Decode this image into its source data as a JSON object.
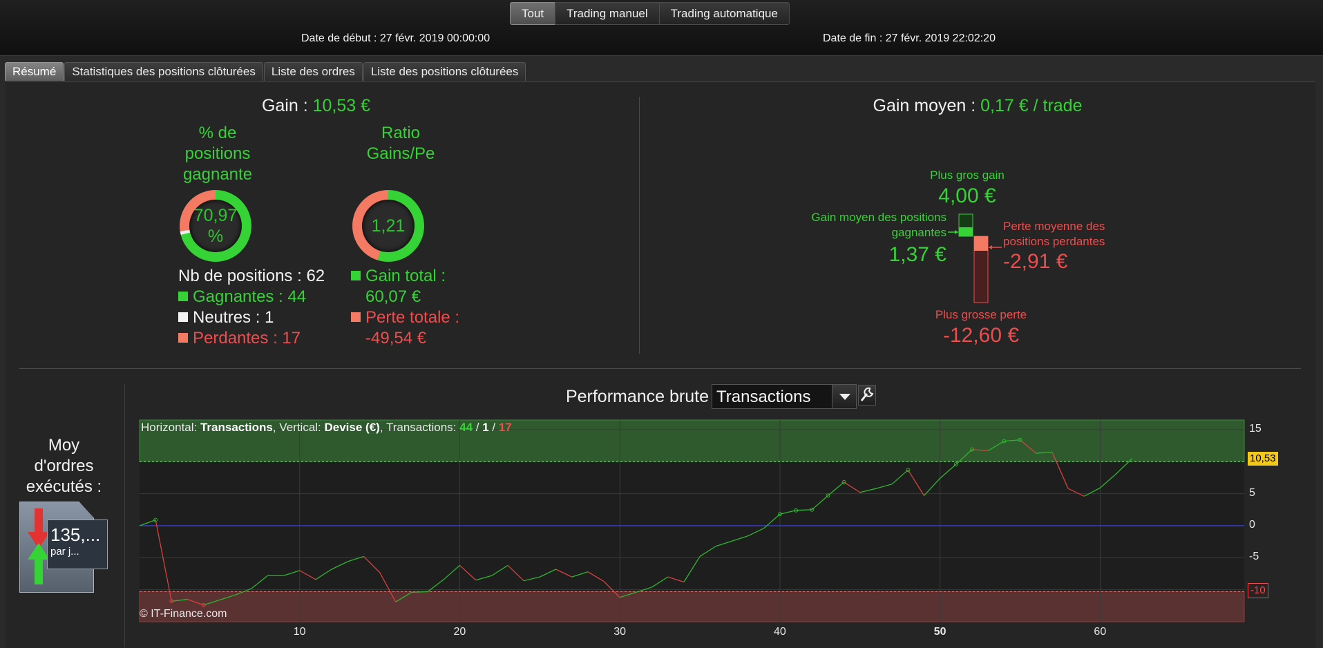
{
  "mode_tabs": [
    "Tout",
    "Trading manuel",
    "Trading automatique"
  ],
  "active_mode": 0,
  "dates": {
    "start": "Date de début : 27 févr. 2019 00:00:00",
    "end": "Date de fin : 27 févr. 2019 22:02:20"
  },
  "subtabs": [
    "Résumé",
    "Statistiques des positions clôturées",
    "Liste des ordres",
    "Liste des positions clôturées"
  ],
  "summary": {
    "gain_label": "Gain :",
    "gain_value": "10,53 €",
    "pct_title": "% de positions gagnante",
    "pct_title_lines": [
      "% de",
      "positions",
      "gagnante"
    ],
    "pct_value_lines": [
      "70,97",
      "%"
    ],
    "pct_fraction": 0.7097,
    "ratio_title_lines": [
      "Ratio",
      "Gains/Pe"
    ],
    "ratio_value": "1,21",
    "nb_positions": "Nb de positions : 62",
    "winners": "Gagnantes : 44",
    "neutrals": "Neutres : 1",
    "losers": "Perdantes : 17",
    "gain_total_lines": [
      "Gain total :",
      "60,07 €"
    ],
    "perte_totale_lines": [
      "Perte totale :",
      "-49,54 €"
    ]
  },
  "avg": {
    "label": "Gain moyen :",
    "value": "0,17 € / trade",
    "max_gain_label": "Plus gros gain",
    "max_gain_value": "4,00 €",
    "avg_win_label_lines": [
      "Gain moyen des positions",
      "gagnantes"
    ],
    "avg_win_value": "1,37 €",
    "avg_loss_label_lines": [
      "Perte moyenne des",
      "positions perdantes"
    ],
    "avg_loss_value": "-2,91 €",
    "max_loss_label": "Plus grosse perte",
    "max_loss_value": "-12,60 €"
  },
  "orders": {
    "label_lines": [
      "Moy",
      "d'ordres",
      "exécutés :"
    ],
    "value": "135,...",
    "sub": "par j..."
  },
  "performance": {
    "title": "Performance brute",
    "select_value": "Transactions",
    "info_parts": {
      "h_label": "Horizontal: ",
      "h_value": "Transactions",
      "v_label": ", Vertical: ",
      "v_value": "Devise (€)",
      "t_label": ", Transactions: ",
      "wins": "44",
      "sep1": " / ",
      "neutral": "1",
      "sep2": " / ",
      "losses": "17"
    },
    "copyright": "© IT-Finance.com",
    "last_value": "10,53",
    "low_marker": "-10"
  },
  "colors": {
    "green": "#35d335",
    "red": "#ef4d4d",
    "neutral": "#f2f2f2",
    "upper_band": "#2e5a2e",
    "lower_band": "#5a3232",
    "zero_line": "#3a3ad0",
    "value_badge": "#f3c81c"
  },
  "chart_data": {
    "type": "line",
    "title": "Performance brute",
    "xlabel": "Transactions",
    "ylabel": "Devise (€)",
    "xlim": [
      0,
      69
    ],
    "ylim": [
      -15,
      16.5
    ],
    "x_ticks": [
      "10",
      "20",
      "30",
      "40",
      "50",
      "60"
    ],
    "y_ticks": [
      "15",
      "10",
      "5",
      "0",
      "-5",
      "-10"
    ],
    "upper_band": 10.0,
    "lower_band": -10.3,
    "series": [
      {
        "x": [
          0,
          1,
          2,
          3,
          4,
          5,
          6,
          7,
          8,
          9,
          10,
          11,
          12,
          13,
          14,
          15,
          16,
          17,
          18,
          19,
          20,
          21,
          22,
          23,
          24,
          25,
          26,
          27,
          28,
          29,
          30,
          31,
          32,
          33,
          34,
          35,
          36,
          37,
          38,
          39,
          40,
          41,
          42,
          43,
          44,
          45,
          46,
          47,
          48,
          49,
          50,
          51,
          52,
          53,
          54,
          55,
          56,
          57,
          58,
          59,
          60,
          61,
          62
        ],
        "y": [
          0,
          0.9,
          -11.8,
          -11.5,
          -12.4,
          -11.6,
          -10.8,
          -9.8,
          -7.8,
          -7.8,
          -7.0,
          -8.4,
          -6.8,
          -5.6,
          -4.8,
          -7.3,
          -11.9,
          -10.4,
          -10.3,
          -8.4,
          -6.2,
          -8.5,
          -7.8,
          -6.2,
          -8.6,
          -8.0,
          -6.8,
          -8.0,
          -7.2,
          -8.7,
          -11.2,
          -10.4,
          -9.6,
          -8.0,
          -8.8,
          -4.8,
          -3.2,
          -2.4,
          -1.6,
          -0.4,
          1.8,
          2.4,
          2.5,
          4.7,
          6.8,
          5.2,
          5.8,
          6.5,
          8.7,
          4.7,
          7.4,
          9.6,
          11.9,
          11.7,
          13.2,
          13.4,
          11.3,
          11.5,
          5.8,
          4.6,
          5.9,
          8.1,
          10.5
        ],
        "wins_mask": [
          1,
          0,
          1,
          1,
          0,
          1,
          1,
          1,
          1,
          0,
          1,
          0,
          1,
          1,
          0,
          0,
          1,
          0,
          1,
          1,
          0,
          1,
          1,
          0,
          1,
          1,
          0,
          1,
          0,
          0,
          1,
          1,
          0,
          1,
          1,
          1,
          1,
          1,
          1,
          1,
          1,
          1,
          1,
          1,
          0,
          1,
          1,
          1,
          0,
          1,
          1,
          1,
          0,
          1,
          1,
          0,
          1,
          0,
          0,
          1,
          1,
          1,
          1
        ]
      }
    ]
  }
}
